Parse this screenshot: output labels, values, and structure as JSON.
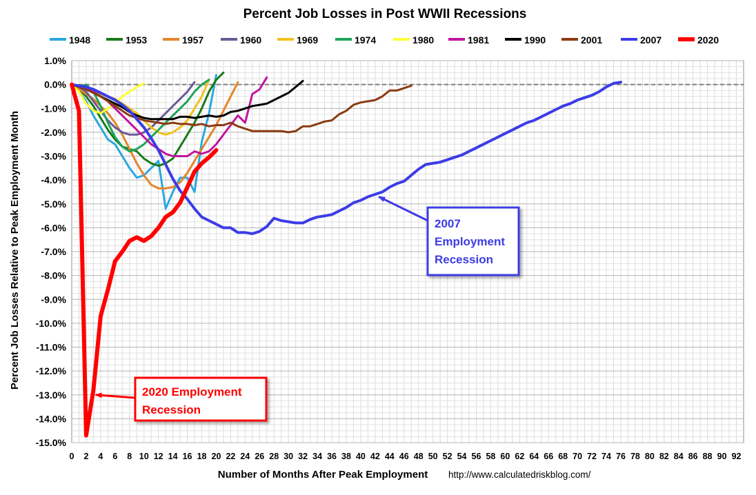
{
  "chart_data": {
    "type": "line",
    "title": "Percent Job Losses in Post WWII Recessions",
    "xlabel": "Number of Months After Peak Employment",
    "ylabel": "Percent Job Losses Relative to Peak Employment Month",
    "source": "http://www.calculatedriskblog.com/",
    "xlim": [
      0,
      93
    ],
    "ylim": [
      -15,
      1
    ],
    "x_ticks": [
      0,
      2,
      4,
      6,
      8,
      10,
      12,
      14,
      16,
      18,
      20,
      22,
      24,
      26,
      28,
      30,
      32,
      34,
      36,
      38,
      40,
      42,
      44,
      46,
      48,
      50,
      52,
      54,
      56,
      58,
      60,
      62,
      64,
      66,
      68,
      70,
      72,
      74,
      76,
      78,
      80,
      82,
      84,
      86,
      88,
      90,
      92
    ],
    "y_ticks": [
      1,
      0,
      -1,
      -2,
      -3,
      -4,
      -5,
      -6,
      -7,
      -8,
      -9,
      -10,
      -11,
      -12,
      -13,
      -14,
      -15
    ],
    "y_tick_labels": [
      "1.0%",
      "0.0%",
      "-1.0%",
      "-2.0%",
      "-3.0%",
      "-4.0%",
      "-5.0%",
      "-6.0%",
      "-7.0%",
      "-8.0%",
      "-9.0%",
      "-10.0%",
      "-11.0%",
      "-12.0%",
      "-13.0%",
      "-14.0%",
      "-15.0%"
    ],
    "grid": true,
    "legend_position": "top",
    "series": [
      {
        "name": "1948",
        "color": "#29a8e0",
        "width": 3,
        "values": [
          0,
          -0.3,
          -0.7,
          -1.3,
          -1.8,
          -2.3,
          -2.5,
          -3.0,
          -3.5,
          -3.9,
          -3.8,
          -3.5,
          -3.2,
          -5.2,
          -4.5,
          -3.9,
          -3.9,
          -4.5,
          -2.4,
          -1.2,
          0.4
        ]
      },
      {
        "name": "1953",
        "color": "#1a7a1a",
        "width": 3,
        "values": [
          0,
          -0.2,
          -0.5,
          -0.9,
          -1.4,
          -1.9,
          -2.3,
          -2.6,
          -2.7,
          -2.8,
          -3.1,
          -3.3,
          -3.4,
          -3.3,
          -3.1,
          -2.6,
          -2.1,
          -1.6,
          -1.0,
          -0.3,
          0.2,
          0.5
        ]
      },
      {
        "name": "1957",
        "color": "#e6842a",
        "width": 3,
        "values": [
          0,
          -0.2,
          -0.4,
          -0.6,
          -0.9,
          -1.2,
          -1.6,
          -2.1,
          -2.7,
          -3.3,
          -3.8,
          -4.2,
          -4.35,
          -4.35,
          -4.3,
          -4.1,
          -3.7,
          -3.2,
          -2.7,
          -2.2,
          -1.7,
          -1.1,
          -0.5,
          0.1
        ]
      },
      {
        "name": "1960",
        "color": "#6a5a96",
        "width": 3,
        "values": [
          0,
          -0.1,
          -0.3,
          -0.7,
          -1.1,
          -1.5,
          -1.8,
          -2.0,
          -2.1,
          -2.1,
          -2.0,
          -1.8,
          -1.5,
          -1.2,
          -0.9,
          -0.6,
          -0.3,
          0.1
        ]
      },
      {
        "name": "1969",
        "color": "#f2c21b",
        "width": 3,
        "values": [
          0,
          -0.1,
          -0.2,
          -0.3,
          -0.4,
          -0.5,
          -0.6,
          -0.8,
          -1.0,
          -1.2,
          -1.5,
          -1.8,
          -2.0,
          -2.1,
          -2.0,
          -1.8,
          -1.5,
          -1.0,
          -0.5,
          0.2
        ]
      },
      {
        "name": "1974",
        "color": "#1fa35a",
        "width": 3,
        "values": [
          0,
          -0.1,
          0,
          -0.3,
          -0.9,
          -1.6,
          -2.2,
          -2.6,
          -2.8,
          -2.7,
          -2.5,
          -2.2,
          -1.9,
          -1.6,
          -1.3,
          -1.0,
          -0.7,
          -0.3,
          0,
          0.2
        ]
      },
      {
        "name": "1980",
        "color": "#ffff33",
        "width": 3,
        "values": [
          0,
          -0.3,
          -0.8,
          -1.1,
          -1.2,
          -1.0,
          -0.8,
          -0.5,
          -0.3,
          -0.1,
          0.05
        ]
      },
      {
        "name": "1981",
        "color": "#c0159f",
        "width": 3,
        "values": [
          0,
          -0.1,
          -0.2,
          -0.3,
          -0.5,
          -0.7,
          -1.0,
          -1.3,
          -1.6,
          -1.9,
          -2.2,
          -2.5,
          -2.7,
          -2.9,
          -3.0,
          -3.0,
          -3.0,
          -2.8,
          -2.9,
          -2.8,
          -2.5,
          -2.1,
          -1.7,
          -1.3,
          -1.6,
          -0.4,
          -0.2,
          0.3
        ]
      },
      {
        "name": "1990",
        "color": "#000000",
        "width": 3,
        "values": [
          0,
          -0.1,
          -0.2,
          -0.35,
          -0.5,
          -0.65,
          -0.8,
          -0.95,
          -1.15,
          -1.3,
          -1.4,
          -1.45,
          -1.45,
          -1.45,
          -1.45,
          -1.35,
          -1.35,
          -1.4,
          -1.35,
          -1.3,
          -1.35,
          -1.3,
          -1.15,
          -1.1,
          -1.0,
          -0.9,
          -0.85,
          -0.8,
          -0.65,
          -0.5,
          -0.35,
          -0.1,
          0.15
        ]
      },
      {
        "name": "2001",
        "color": "#8b3a12",
        "width": 3,
        "values": [
          0,
          -0.1,
          -0.2,
          -0.35,
          -0.5,
          -0.7,
          -0.9,
          -1.1,
          -1.3,
          -1.4,
          -1.5,
          -1.55,
          -1.6,
          -1.65,
          -1.6,
          -1.65,
          -1.65,
          -1.7,
          -1.65,
          -1.75,
          -1.7,
          -1.7,
          -1.6,
          -1.75,
          -1.85,
          -1.95,
          -1.95,
          -1.95,
          -1.95,
          -1.95,
          -2.0,
          -1.95,
          -1.75,
          -1.75,
          -1.65,
          -1.55,
          -1.5,
          -1.25,
          -1.1,
          -0.85,
          -0.75,
          -0.7,
          -0.65,
          -0.5,
          -0.25,
          -0.25,
          -0.15,
          -0.05
        ]
      },
      {
        "name": "2007",
        "color": "#3c3ce6",
        "width": 4,
        "values": [
          0,
          -0.05,
          -0.1,
          -0.2,
          -0.35,
          -0.5,
          -0.65,
          -0.85,
          -1.1,
          -1.45,
          -1.8,
          -2.25,
          -2.75,
          -3.35,
          -3.95,
          -4.45,
          -4.8,
          -5.2,
          -5.55,
          -5.7,
          -5.85,
          -6.0,
          -6.0,
          -6.2,
          -6.2,
          -6.25,
          -6.15,
          -5.95,
          -5.6,
          -5.7,
          -5.75,
          -5.8,
          -5.8,
          -5.65,
          -5.55,
          -5.5,
          -5.45,
          -5.3,
          -5.15,
          -4.95,
          -4.85,
          -4.7,
          -4.6,
          -4.5,
          -4.3,
          -4.15,
          -4.05,
          -3.8,
          -3.55,
          -3.35,
          -3.3,
          -3.25,
          -3.15,
          -3.05,
          -2.95,
          -2.8,
          -2.65,
          -2.5,
          -2.35,
          -2.2,
          -2.05,
          -1.9,
          -1.75,
          -1.6,
          -1.5,
          -1.35,
          -1.2,
          -1.05,
          -0.9,
          -0.8,
          -0.65,
          -0.55,
          -0.45,
          -0.3,
          -0.1,
          0.05,
          0.1
        ]
      },
      {
        "name": "2020",
        "color": "#ff0000",
        "width": 6,
        "values": [
          0,
          -1.1,
          -14.7,
          -12.8,
          -9.7,
          -8.6,
          -7.4,
          -7.0,
          -6.55,
          -6.4,
          -6.55,
          -6.35,
          -6.0,
          -5.55,
          -5.35,
          -4.95,
          -4.3,
          -3.65,
          -3.3,
          -3.05,
          -2.75
        ]
      }
    ],
    "annotations": [
      {
        "text": [
          "2007",
          "Employment",
          "Recession"
        ],
        "color": "#3c3ce6",
        "arrow_to": [
          42.5,
          -4.7
        ]
      },
      {
        "text": [
          "2020 Employment",
          "Recession"
        ],
        "color": "#ff0000",
        "arrow_to": [
          3.3,
          -13.0
        ]
      }
    ]
  }
}
